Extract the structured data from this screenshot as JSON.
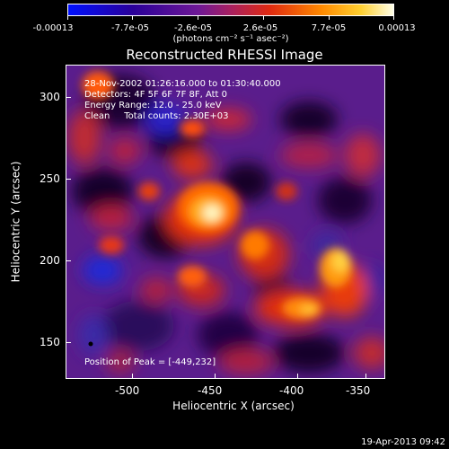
{
  "colorbar": {
    "tick_labels": [
      "-0.00013",
      "-7.7e-05",
      "-2.6e-05",
      "2.6e-05",
      "7.7e-05",
      "0.00013"
    ],
    "units": "(photons cm⁻² s⁻¹ asec⁻²)"
  },
  "title": "Reconstructed RHESSI Image",
  "info": {
    "line1": "28-Nov-2002 01:26:16.000 to 01:30:40.000",
    "line2": "Detectors: 4F 5F 6F 7F 8F, Att 0",
    "line3": "Energy Range: 12.0 - 25.0 keV",
    "line4": "Clean     Total counts: 2.30E+03",
    "peak": "Position of Peak = [-449,232]"
  },
  "axes": {
    "xlabel": "Heliocentric X (arcsec)",
    "ylabel": "Heliocentric Y (arcsec)",
    "xticks": [
      "-500",
      "-450",
      "-400",
      "-350"
    ],
    "yticks": [
      "300",
      "250",
      "200",
      "150"
    ],
    "xlim": [
      -535,
      -340
    ],
    "ylim": [
      125,
      320
    ]
  },
  "footer": "19-Apr-2013 09:42",
  "colors": {
    "background": "#000000",
    "foreground": "#ffffff"
  }
}
